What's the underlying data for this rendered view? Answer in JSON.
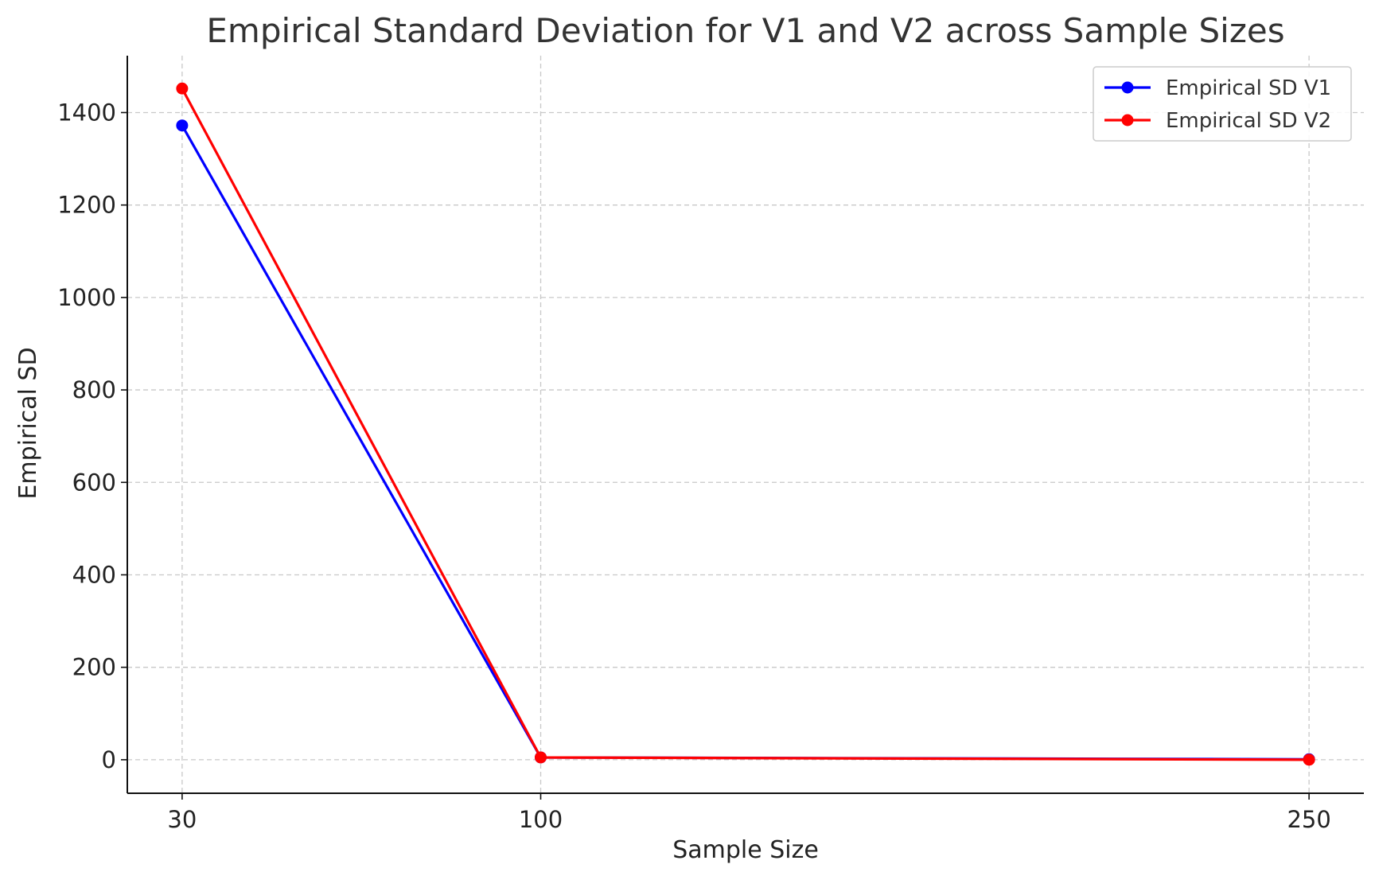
{
  "chart_data": {
    "type": "line",
    "title": "Empirical Standard Deviation for V1 and V2 across Sample Sizes",
    "xlabel": "Sample Size",
    "ylabel": "Empirical SD",
    "x": [
      30,
      100,
      250
    ],
    "x_ticks": [
      "30",
      "100",
      "250"
    ],
    "y_ticks": [
      "0",
      "200",
      "400",
      "600",
      "800",
      "1000",
      "1200",
      "1400"
    ],
    "xlim": [
      19.3,
      260.7
    ],
    "ylim": [
      -72.5,
      1523
    ],
    "grid": true,
    "legend_position": "top-right",
    "series": [
      {
        "name": "Empirical SD V1",
        "color": "#0000ff",
        "marker": "circle",
        "values": [
          1372,
          5,
          1
        ]
      },
      {
        "name": "Empirical SD V2",
        "color": "#ff0000",
        "marker": "circle",
        "values": [
          1452,
          5,
          0
        ]
      }
    ]
  }
}
